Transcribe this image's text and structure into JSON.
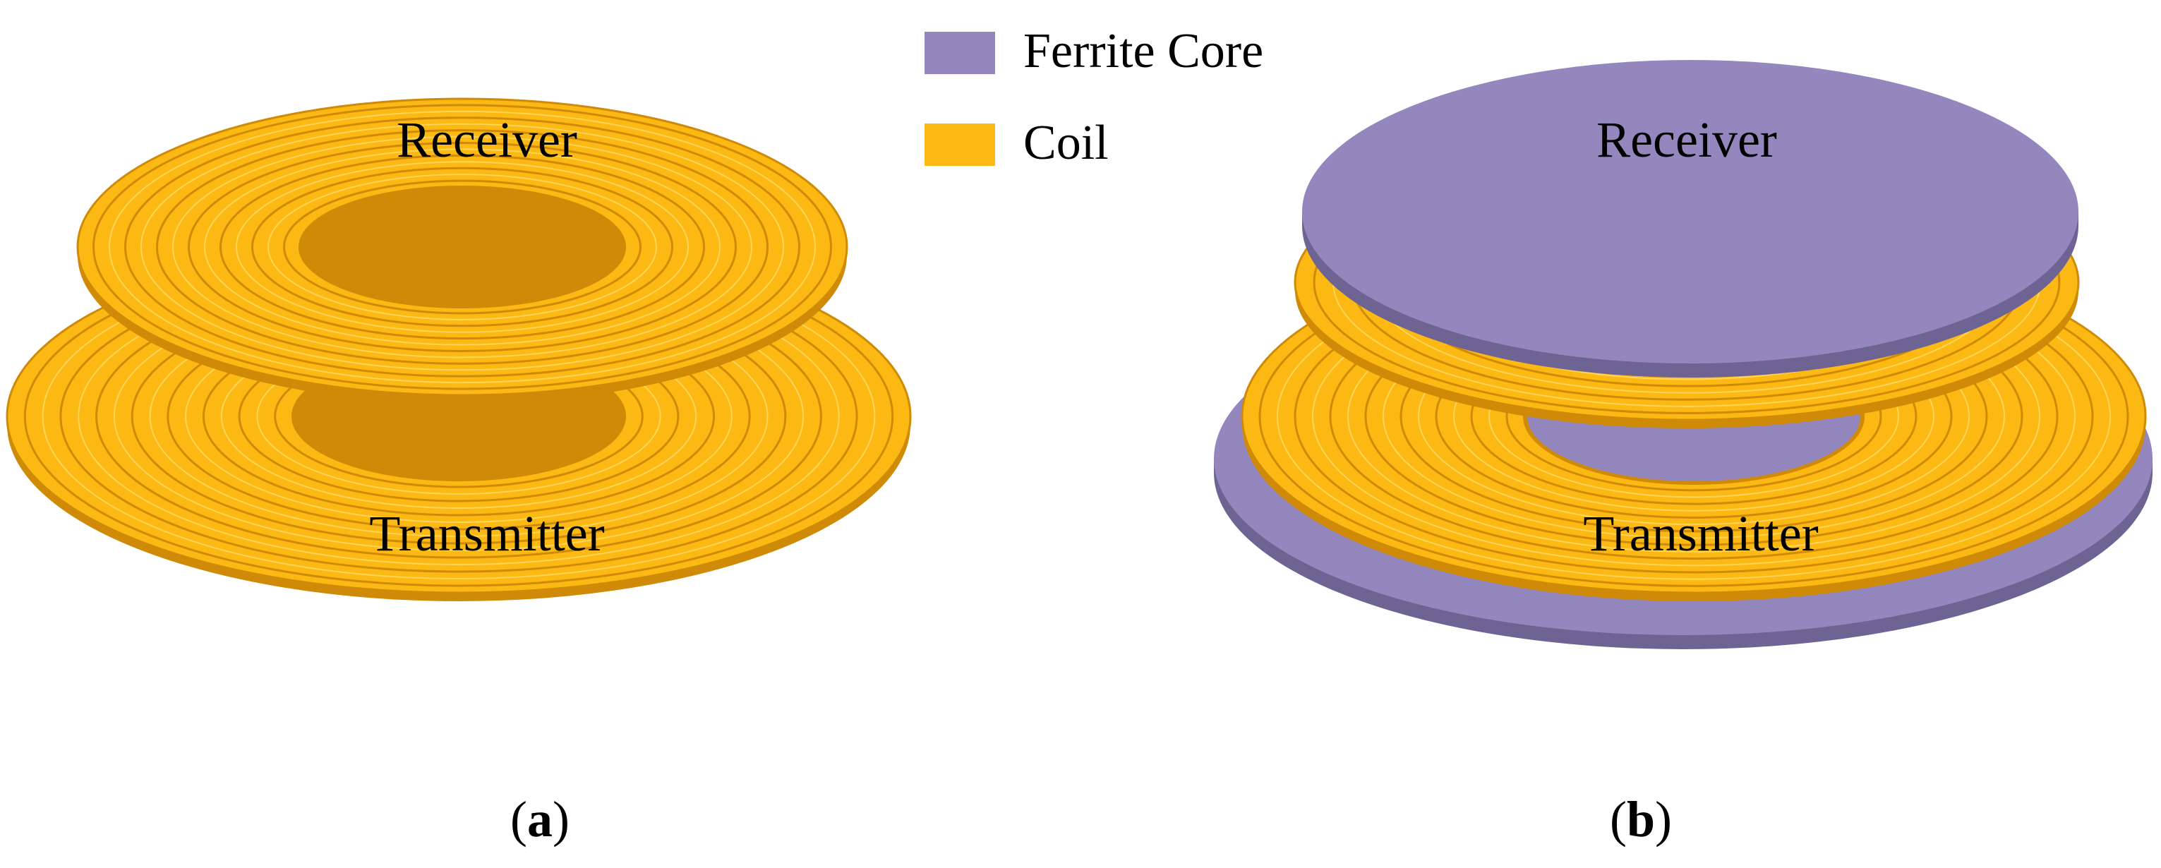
{
  "legend": {
    "items": [
      {
        "label": "Ferrite Core",
        "color": "#9387bd"
      },
      {
        "label": "Coil",
        "color": "#fcb813"
      }
    ]
  },
  "panels": [
    {
      "id": "a",
      "caption_letter": "a",
      "receiver_label": "Receiver",
      "transmitter_label": "Transmitter",
      "has_ferrite": false
    },
    {
      "id": "b",
      "caption_letter": "b",
      "receiver_label": "Receiver",
      "transmitter_label": "Transmitter",
      "has_ferrite": true
    }
  ],
  "colors": {
    "coil_fill": "#fcb813",
    "coil_stroke": "#cf8a08",
    "coil_highlight": "#ffd55a",
    "ferrite_top": "#9387bd",
    "ferrite_edge": "#6e6493"
  }
}
